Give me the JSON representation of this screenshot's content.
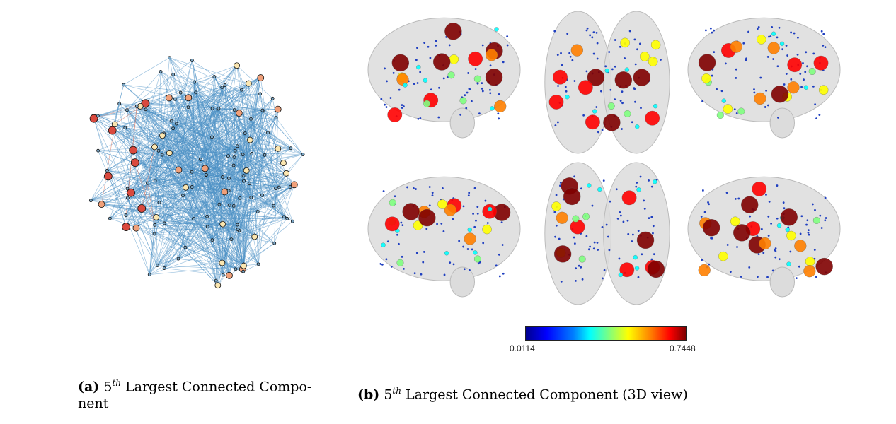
{
  "figure": {
    "panel_a": {
      "caption_tag": "(a)",
      "caption_num": "5",
      "caption_sup": "th",
      "caption_text": " Largest Connected Compo-nent"
    },
    "panel_b": {
      "caption_tag": "(b)",
      "caption_num": "5",
      "caption_sup": "th",
      "caption_text": " Largest Connected Component (3D view)"
    },
    "colorbar": {
      "min_label": "0.0114",
      "max_label": "0.7448",
      "colormap": "jet"
    }
  },
  "colors": {
    "edge_blue": "#4a8fc4",
    "edge_red": "#d9735e",
    "node_red": "#d9493e",
    "node_salmon": "#f0a07a",
    "node_cream": "#fbe6b0",
    "brain_gray": "#dcdcdc"
  }
}
